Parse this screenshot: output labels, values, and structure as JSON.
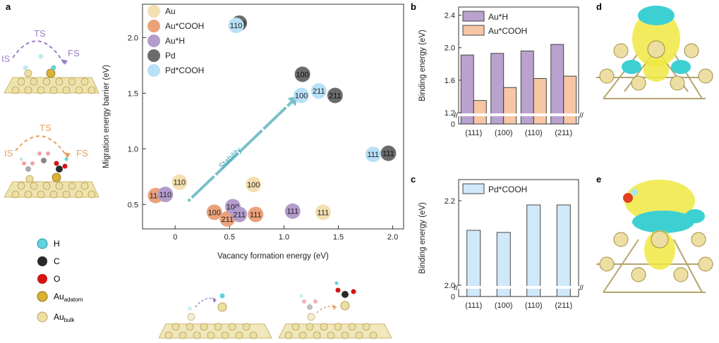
{
  "panel_labels": {
    "a": "a",
    "b": "b",
    "c": "c",
    "d": "d",
    "e": "e"
  },
  "schematic": {
    "path1": {
      "ts": "TS",
      "is": "IS",
      "fs": "FS"
    },
    "path2": {
      "ts": "TS",
      "is": "IS",
      "fs": "FS"
    }
  },
  "atom_legend": [
    {
      "label": "H",
      "sub": "",
      "color": "#5fd3de"
    },
    {
      "label": "C",
      "sub": "",
      "color": "#2a2a2a"
    },
    {
      "label": "O",
      "sub": "",
      "color": "#d41414"
    },
    {
      "label": "Au",
      "sub": "adatom",
      "color": "#d9b233"
    },
    {
      "label": "Au",
      "sub": "bulk",
      "color": "#eddfa3"
    }
  ],
  "colors": {
    "Au": "#f3dfb0",
    "AuCOOH": "#eba27a",
    "AuH": "#b39ccc",
    "Pd": "#6b6b6b",
    "PdCOOH": "#b8e0f6",
    "barH": "#b9a2ce",
    "barCOOH": "#f6c6a5",
    "barPd": "#cfe9fa",
    "arrow": "#7bbfcb"
  },
  "chart_data": [
    {
      "type": "scatter",
      "xlabel": "Vacancy formation energy (eV)",
      "ylabel": "Migration energy barrier (eV)",
      "xlim": [
        -0.3,
        2.1
      ],
      "ylim": [
        0.28,
        2.3
      ],
      "x_ticks": [
        "0",
        "0.5",
        "1.0",
        "1.5",
        "2.0"
      ],
      "y_ticks": [
        "0.5",
        "1.0",
        "1.5",
        "2.0"
      ],
      "annotation": "Stability",
      "series": [
        {
          "name": "Au",
          "color": "#f3dfb0",
          "text": "#222",
          "points": [
            {
              "x": 0.04,
              "y": 0.7,
              "label": "110"
            },
            {
              "x": 0.72,
              "y": 0.68,
              "label": "100"
            },
            {
              "x": 1.36,
              "y": 0.43,
              "label": "111"
            }
          ]
        },
        {
          "name": "Au*COOH",
          "color": "#eba27a",
          "text": "#222",
          "points": [
            {
              "x": -0.18,
              "y": 0.58,
              "label": "110"
            },
            {
              "x": 0.36,
              "y": 0.43,
              "label": "100"
            },
            {
              "x": 0.48,
              "y": 0.37,
              "label": "211"
            },
            {
              "x": 0.74,
              "y": 0.41,
              "label": "111"
            }
          ]
        },
        {
          "name": "Au*H",
          "color": "#b39ccc",
          "text": "#222",
          "points": [
            {
              "x": -0.09,
              "y": 0.59,
              "label": "110"
            },
            {
              "x": 0.53,
              "y": 0.48,
              "label": "100"
            },
            {
              "x": 0.59,
              "y": 0.41,
              "label": "211"
            },
            {
              "x": 1.08,
              "y": 0.44,
              "label": "111"
            }
          ]
        },
        {
          "name": "Pd",
          "color": "#6b6b6b",
          "text": "#111",
          "points": [
            {
              "x": 0.59,
              "y": 2.13,
              "label": "110"
            },
            {
              "x": 1.17,
              "y": 1.67,
              "label": "100"
            },
            {
              "x": 1.47,
              "y": 1.48,
              "label": "211"
            },
            {
              "x": 1.96,
              "y": 0.96,
              "label": "111"
            }
          ]
        },
        {
          "name": "Pd*COOH",
          "color": "#b8e0f6",
          "text": "#222",
          "points": [
            {
              "x": 0.56,
              "y": 2.11,
              "label": "110"
            },
            {
              "x": 1.16,
              "y": 1.48,
              "label": "100"
            },
            {
              "x": 1.32,
              "y": 1.52,
              "label": "211"
            },
            {
              "x": 1.82,
              "y": 0.95,
              "label": "111"
            }
          ]
        }
      ]
    },
    {
      "type": "bar",
      "ylabel": "Binding energy (eV)",
      "categories": [
        "(111)",
        "(100)",
        "(110)",
        "(211)"
      ],
      "y_ticks": [
        "0",
        "1.2",
        "1.6",
        "2.0",
        "2.4"
      ],
      "axis_break": [
        0,
        1.2
      ],
      "ylim": [
        1.2,
        2.5
      ],
      "series": [
        {
          "name": "Au*H",
          "values": [
            1.91,
            1.93,
            1.96,
            2.04
          ]
        },
        {
          "name": "Au*COOH",
          "values": [
            1.35,
            1.51,
            1.62,
            1.65
          ]
        }
      ]
    },
    {
      "type": "bar",
      "ylabel": "Binding energy (eV)",
      "categories": [
        "(111)",
        "(100)",
        "(110)",
        "(211)"
      ],
      "y_ticks": [
        "0",
        "2.0",
        "2.2"
      ],
      "axis_break": [
        0,
        2.0
      ],
      "ylim": [
        2.0,
        2.25
      ],
      "series": [
        {
          "name": "Pd*COOH",
          "values": [
            2.13,
            2.125,
            2.19,
            2.19
          ]
        }
      ]
    }
  ]
}
